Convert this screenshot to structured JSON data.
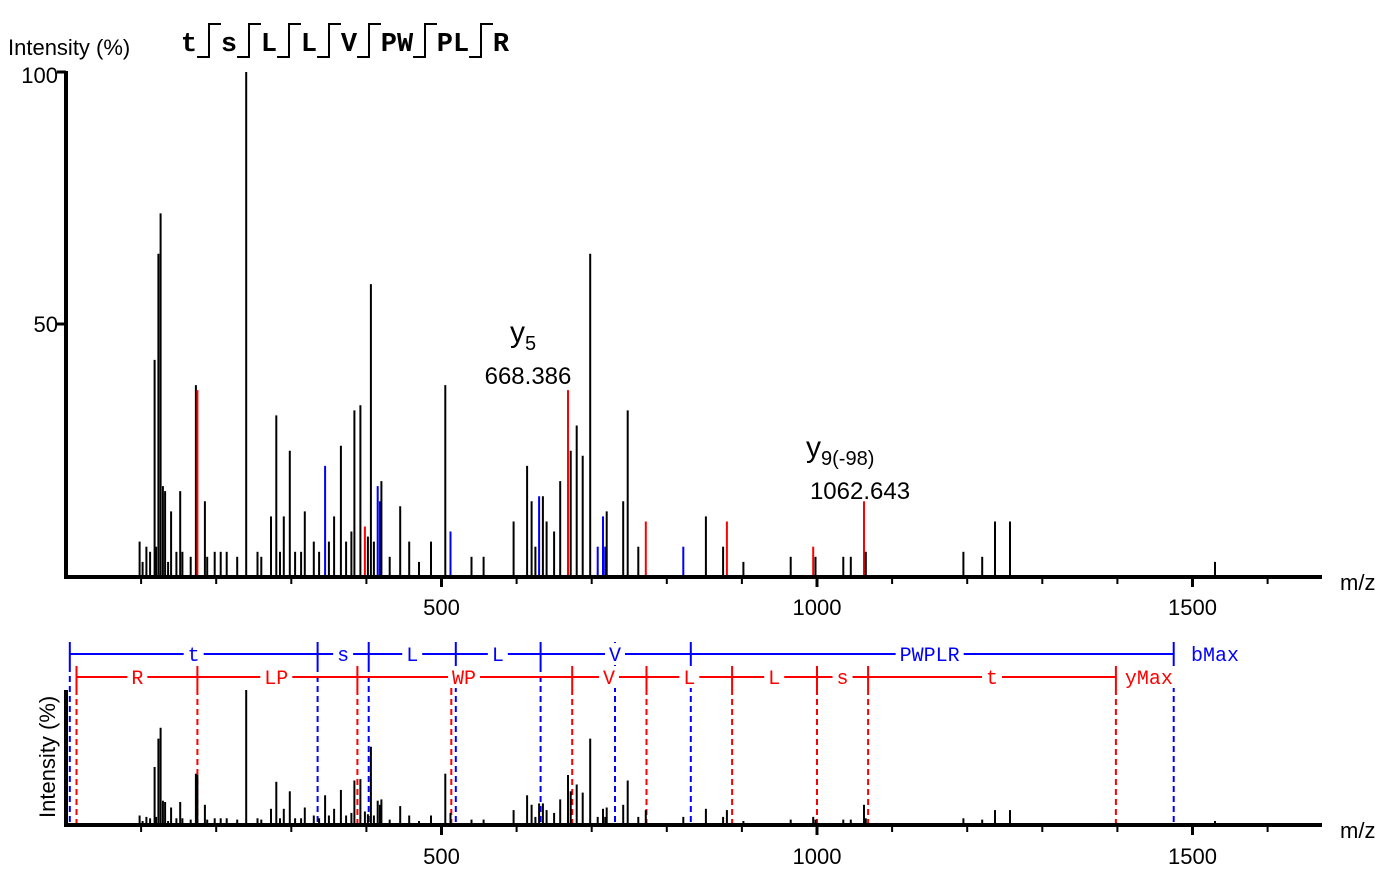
{
  "chart_data": [
    {
      "type": "bar",
      "name": "ms2-spectrum",
      "ylabel": "Intensity (%)",
      "xlabel": "m/z",
      "xlim": [
        0,
        1690
      ],
      "ylim": [
        0,
        100
      ],
      "xticks": [
        "500",
        "1000",
        "1500"
      ],
      "yticks": [
        "50",
        "100"
      ],
      "peptide": [
        "t",
        "s",
        "L",
        "L",
        "V",
        "PW",
        "PL",
        "R"
      ],
      "colors": {
        "unmatched": "#000000",
        "y_ion": "#ff0000",
        "b_ion": "#0000ff"
      },
      "annotations": [
        {
          "ion": "y",
          "sub": "5",
          "mz_label": "668.386",
          "mz": 668.4
        },
        {
          "ion": "y",
          "sub": "9(-98)",
          "mz_label": "1062.643",
          "mz": 1062.6
        }
      ],
      "peaks": [
        [
          98,
          7,
          "k"
        ],
        [
          102,
          3,
          "k"
        ],
        [
          107,
          6,
          "k"
        ],
        [
          112,
          5,
          "k"
        ],
        [
          118,
          43,
          "k"
        ],
        [
          120,
          6,
          "k"
        ],
        [
          123,
          64,
          "k"
        ],
        [
          126,
          72,
          "k"
        ],
        [
          129,
          18,
          "k"
        ],
        [
          132,
          17,
          "k"
        ],
        [
          136,
          3,
          "k"
        ],
        [
          140,
          13,
          "k"
        ],
        [
          147,
          5,
          "k"
        ],
        [
          152,
          17,
          "k"
        ],
        [
          155,
          5,
          "k"
        ],
        [
          166,
          4,
          "k"
        ],
        [
          173,
          38,
          "k"
        ],
        [
          175,
          37,
          "r"
        ],
        [
          185,
          15,
          "k"
        ],
        [
          188,
          4,
          "k"
        ],
        [
          198,
          5,
          "k"
        ],
        [
          206,
          5,
          "k"
        ],
        [
          214,
          5,
          "k"
        ],
        [
          228,
          4,
          "k"
        ],
        [
          240,
          100,
          "k"
        ],
        [
          255,
          5,
          "k"
        ],
        [
          260,
          4,
          "k"
        ],
        [
          273,
          12,
          "k"
        ],
        [
          280,
          32,
          "k"
        ],
        [
          285,
          5,
          "k"
        ],
        [
          290,
          12,
          "k"
        ],
        [
          298,
          25,
          "k"
        ],
        [
          305,
          5,
          "k"
        ],
        [
          313,
          5,
          "k"
        ],
        [
          318,
          13,
          "k"
        ],
        [
          330,
          7,
          "k"
        ],
        [
          337,
          5,
          "k"
        ],
        [
          345,
          22,
          "b"
        ],
        [
          350,
          7,
          "k"
        ],
        [
          357,
          12,
          "k"
        ],
        [
          366,
          26,
          "k"
        ],
        [
          373,
          7,
          "k"
        ],
        [
          380,
          9,
          "k"
        ],
        [
          384,
          33,
          "k"
        ],
        [
          392,
          34,
          "k"
        ],
        [
          398,
          10,
          "r"
        ],
        [
          402,
          8,
          "k"
        ],
        [
          406,
          58,
          "k"
        ],
        [
          410,
          7,
          "k"
        ],
        [
          415,
          18,
          "b"
        ],
        [
          418,
          15,
          "b"
        ],
        [
          420,
          19,
          "k"
        ],
        [
          431,
          4,
          "k"
        ],
        [
          445,
          14,
          "k"
        ],
        [
          457,
          7,
          "k"
        ],
        [
          470,
          3,
          "k"
        ],
        [
          486,
          7,
          "k"
        ],
        [
          505,
          38,
          "k"
        ],
        [
          512,
          9,
          "b"
        ],
        [
          540,
          4,
          "k"
        ],
        [
          556,
          4,
          "k"
        ],
        [
          596,
          11,
          "k"
        ],
        [
          614,
          22,
          "k"
        ],
        [
          620,
          15,
          "k"
        ],
        [
          625,
          6,
          "k"
        ],
        [
          630,
          16,
          "b"
        ],
        [
          635,
          16,
          "k"
        ],
        [
          640,
          11,
          "k"
        ],
        [
          650,
          9,
          "k"
        ],
        [
          658,
          19,
          "k"
        ],
        [
          668.4,
          37,
          "r"
        ],
        [
          672,
          25,
          "k"
        ],
        [
          680,
          30,
          "k"
        ],
        [
          688,
          24,
          "k"
        ],
        [
          698,
          64,
          "k"
        ],
        [
          708,
          6,
          "b"
        ],
        [
          715,
          12,
          "b"
        ],
        [
          718,
          6,
          "b"
        ],
        [
          720,
          13,
          "k"
        ],
        [
          742,
          15,
          "k"
        ],
        [
          748,
          33,
          "k"
        ],
        [
          762,
          6,
          "k"
        ],
        [
          772,
          11,
          "r"
        ],
        [
          822,
          6,
          "b"
        ],
        [
          852,
          12,
          "k"
        ],
        [
          875,
          6,
          "k"
        ],
        [
          880,
          11,
          "r"
        ],
        [
          902,
          3,
          "k"
        ],
        [
          965,
          4,
          "k"
        ],
        [
          995,
          6,
          "r"
        ],
        [
          998,
          4,
          "k"
        ],
        [
          1035,
          4,
          "k"
        ],
        [
          1045,
          4,
          "k"
        ],
        [
          1062.6,
          15,
          "r"
        ],
        [
          1065,
          5,
          "k"
        ],
        [
          1195,
          5,
          "k"
        ],
        [
          1220,
          4,
          "k"
        ],
        [
          1237,
          11,
          "k"
        ],
        [
          1257,
          11,
          "k"
        ],
        [
          1530,
          3,
          "k"
        ]
      ]
    },
    {
      "type": "bar",
      "name": "fragment-coverage",
      "ylabel": "Intensity (%)",
      "xlabel": "m/z",
      "xlim": [
        0,
        1690
      ],
      "xticks": [
        "500",
        "1000",
        "1500"
      ],
      "b_series": {
        "color": "#0000ff",
        "boundaries": [
          5,
          335,
          403,
          519,
          632,
          731,
          731,
          832,
          1475
        ],
        "labels": [
          {
            "text": "t",
            "mz": 170
          },
          {
            "text": "s",
            "mz": 369
          },
          {
            "text": "L",
            "mz": 461
          },
          {
            "text": "L",
            "mz": 575
          },
          {
            "text": "V",
            "mz": 731
          },
          {
            "text": "PWPLR",
            "mz": 1150
          },
          {
            "text": "bMax",
            "mz": 1530
          }
        ]
      },
      "y_series": {
        "color": "#ff0000",
        "boundaries": [
          14,
          175,
          388,
          513,
          674,
          773,
          887,
          1000,
          1068,
          1398
        ],
        "labels": [
          {
            "text": "R",
            "mz": 95
          },
          {
            "text": "LP",
            "mz": 280
          },
          {
            "text": "WP",
            "mz": 530
          },
          {
            "text": "V",
            "mz": 723
          },
          {
            "text": "L",
            "mz": 830
          },
          {
            "text": "L",
            "mz": 943
          },
          {
            "text": "s",
            "mz": 1034
          },
          {
            "text": "t",
            "mz": 1233
          },
          {
            "text": "yMax",
            "mz": 1442
          }
        ]
      }
    }
  ]
}
